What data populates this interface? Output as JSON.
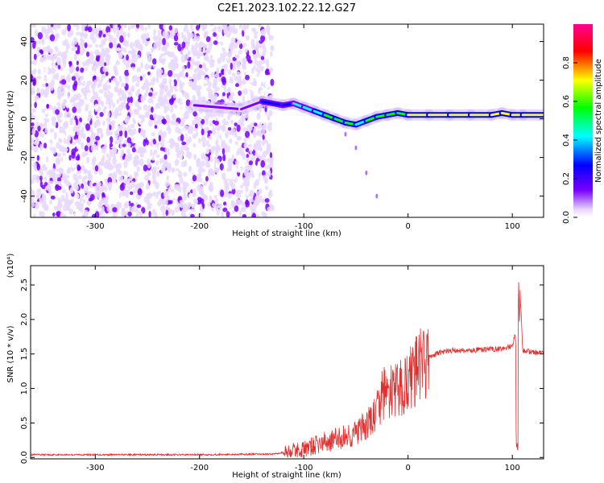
{
  "title": "C2E1.2023.102.22.12.G27",
  "chart_data": [
    {
      "type": "heatmap",
      "xlabel": "Height of straight line (km)",
      "ylabel": "Frequency (Hz)",
      "xlim": [
        -362,
        130
      ],
      "ylim": [
        -51,
        49
      ],
      "xticks": [
        -300,
        -200,
        -100,
        0,
        100
      ],
      "yticks": [
        -40,
        -20,
        0,
        20,
        40
      ],
      "grid": false,
      "colorbar": {
        "label": "Normalized spectral amplitude",
        "range": [
          0,
          1
        ],
        "ticks": [
          0.0,
          0.2,
          0.4,
          0.6,
          0.8
        ],
        "tick_labels": [
          "0.0",
          "0.2",
          "0.4",
          "0.6",
          "0.8"
        ],
        "colors": [
          "#ffffff",
          "#7a00ff",
          "#0000ff",
          "#00ffff",
          "#00ff00",
          "#ffff00",
          "#ff0000",
          "#ff0090"
        ]
      },
      "noise_region_x": [
        -362,
        -130
      ],
      "ridge": [
        {
          "x": -205,
          "y": 7,
          "amp": 0.25
        },
        {
          "x": -160,
          "y": 5,
          "amp": 0.25
        },
        {
          "x": -140,
          "y": 9,
          "amp": 0.3
        },
        {
          "x": -120,
          "y": 7,
          "amp": 0.4
        },
        {
          "x": -110,
          "y": 8,
          "amp": 0.45
        },
        {
          "x": -100,
          "y": 6,
          "amp": 0.5
        },
        {
          "x": -90,
          "y": 4,
          "amp": 0.55
        },
        {
          "x": -80,
          "y": 2,
          "amp": 0.6
        },
        {
          "x": -70,
          "y": 0,
          "amp": 0.6
        },
        {
          "x": -60,
          "y": -2,
          "amp": 0.6
        },
        {
          "x": -50,
          "y": -3,
          "amp": 0.55
        },
        {
          "x": -40,
          "y": -1,
          "amp": 0.6
        },
        {
          "x": -30,
          "y": 1,
          "amp": 0.65
        },
        {
          "x": -20,
          "y": 2,
          "amp": 0.7
        },
        {
          "x": -10,
          "y": 3,
          "amp": 0.7
        },
        {
          "x": 0,
          "y": 2,
          "amp": 0.72
        },
        {
          "x": 20,
          "y": 2,
          "amp": 0.75
        },
        {
          "x": 40,
          "y": 2,
          "amp": 0.75
        },
        {
          "x": 60,
          "y": 2,
          "amp": 0.75
        },
        {
          "x": 80,
          "y": 2,
          "amp": 0.78
        },
        {
          "x": 90,
          "y": 3,
          "amp": 0.8
        },
        {
          "x": 100,
          "y": 2,
          "amp": 0.75
        },
        {
          "x": 110,
          "y": 2,
          "amp": 0.72
        },
        {
          "x": 130,
          "y": 2,
          "amp": 0.72
        }
      ],
      "tail": [
        {
          "x": -60,
          "y": -8
        },
        {
          "x": -50,
          "y": -15
        },
        {
          "x": -40,
          "y": -28
        },
        {
          "x": -30,
          "y": -40
        }
      ]
    },
    {
      "type": "line",
      "xlabel": "Height of straight line (km)",
      "ylabel": "SNR (10 * v/v)",
      "y_multiplier": "(x10⁴)",
      "xlim": [
        -362,
        130
      ],
      "ylim": [
        -0.02,
        2.78
      ],
      "xticks": [
        -300,
        -200,
        -100,
        0,
        100
      ],
      "yticks": [
        0.0,
        0.5,
        1.0,
        1.5,
        2.0,
        2.5
      ],
      "ytick_labels": [
        "0.0",
        "0.5",
        "1.0",
        "1.5",
        "2.0",
        "2.5"
      ],
      "grid": false,
      "series": [
        {
          "color": "#e03030",
          "x": [
            -362,
            -300,
            -200,
            -130,
            -100,
            -80,
            -60,
            -50,
            -40,
            -30,
            -25,
            -20,
            -10,
            0,
            10,
            20,
            30,
            40,
            60,
            80,
            90,
            100,
            103,
            105,
            107,
            110,
            130
          ],
          "y": [
            0.04,
            0.04,
            0.04,
            0.05,
            0.12,
            0.22,
            0.3,
            0.35,
            0.45,
            0.65,
            0.9,
            0.95,
            0.95,
            1.1,
            1.3,
            1.45,
            1.52,
            1.55,
            1.55,
            1.57,
            1.58,
            1.6,
            1.8,
            0.1,
            2.6,
            1.55,
            1.5
          ]
        }
      ]
    }
  ]
}
